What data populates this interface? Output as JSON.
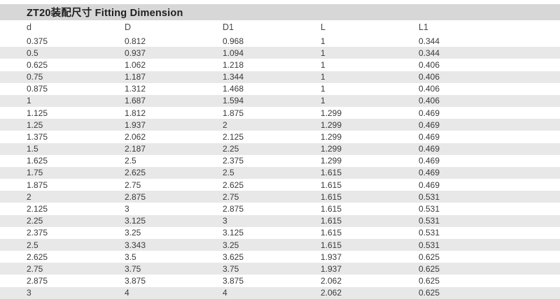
{
  "title": "ZT20装配尺寸 Fitting Dimension",
  "colors": {
    "title_band_bg": "#d7d7d7",
    "row_stripe_bg": "#e8e8e8",
    "text": "#3a3a3a"
  },
  "chart_data": {
    "type": "table",
    "title": "ZT20装配尺寸 Fitting Dimension",
    "columns": [
      "d",
      "D",
      "D1",
      "L",
      "L1"
    ],
    "rows": [
      [
        "0.375",
        "0.812",
        "0.968",
        "1",
        "0.344"
      ],
      [
        "0.5",
        "0.937",
        "1.094",
        "1",
        "0.344"
      ],
      [
        "0.625",
        "1.062",
        "1.218",
        "1",
        "0.406"
      ],
      [
        "0.75",
        "1.187",
        "1.344",
        "1",
        "0.406"
      ],
      [
        "0.875",
        "1.312",
        "1.468",
        "1",
        "0.406"
      ],
      [
        "1",
        "1.687",
        "1.594",
        "1",
        "0.406"
      ],
      [
        "1.125",
        "1.812",
        "1.875",
        "1.299",
        "0.469"
      ],
      [
        "1.25",
        "1.937",
        "2",
        "1.299",
        "0.469"
      ],
      [
        "1.375",
        "2.062",
        "2.125",
        "1.299",
        "0.469"
      ],
      [
        "1.5",
        "2.187",
        "2.25",
        "1.299",
        "0.469"
      ],
      [
        "1.625",
        "2.5",
        "2.375",
        "1.299",
        "0.469"
      ],
      [
        "1.75",
        "2.625",
        "2.5",
        "1.615",
        "0.469"
      ],
      [
        "1.875",
        "2.75",
        "2.625",
        "1.615",
        "0.469"
      ],
      [
        "2",
        "2.875",
        "2.75",
        "1.615",
        "0.531"
      ],
      [
        "2.125",
        "3",
        "2.875",
        "1.615",
        "0.531"
      ],
      [
        "2.25",
        "3.125",
        "3",
        "1.615",
        "0.531"
      ],
      [
        "2.375",
        "3.25",
        "3.125",
        "1.615",
        "0.531"
      ],
      [
        "2.5",
        "3.343",
        "3.25",
        "1.615",
        "0.531"
      ],
      [
        "2.625",
        "3.5",
        "3.625",
        "1.937",
        "0.625"
      ],
      [
        "2.75",
        "3.75",
        "3.75",
        "1.937",
        "0.625"
      ],
      [
        "2.875",
        "3.875",
        "3.875",
        "2.062",
        "0.625"
      ],
      [
        "3",
        "4",
        "4",
        "2.062",
        "0.625"
      ]
    ]
  }
}
